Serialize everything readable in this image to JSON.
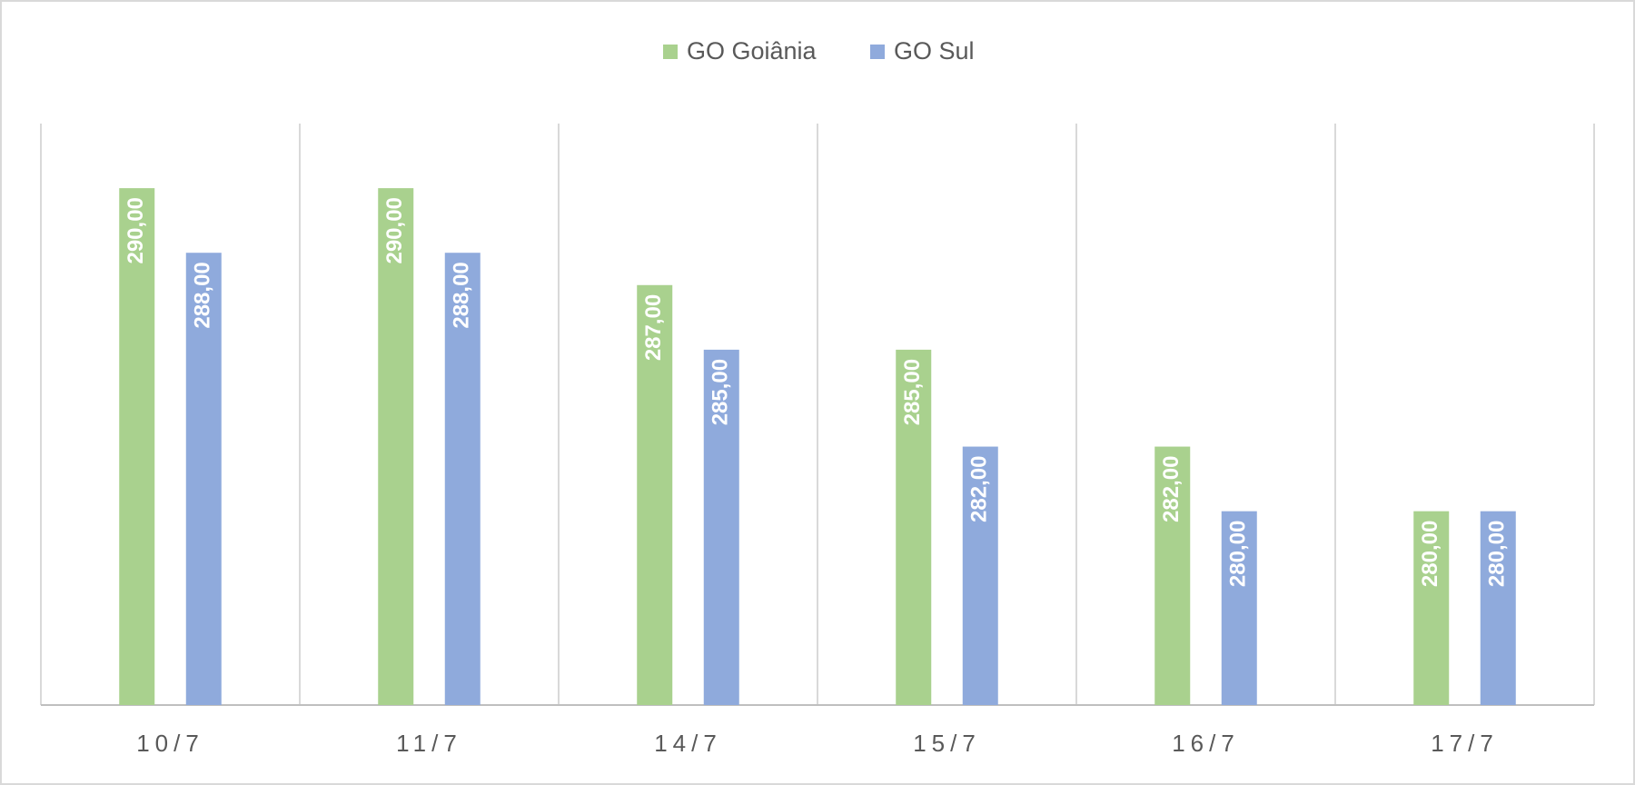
{
  "chart_data": {
    "type": "bar",
    "categories": [
      "10/7",
      "11/7",
      "14/7",
      "15/7",
      "16/7",
      "17/7"
    ],
    "series": [
      {
        "name": "GO Goiânia",
        "color": "#a9d18e",
        "values": [
          290,
          290,
          287,
          285,
          282,
          280
        ],
        "value_labels": [
          "290,00",
          "290,00",
          "287,00",
          "285,00",
          "282,00",
          "280,00"
        ]
      },
      {
        "name": "GO Sul",
        "color": "#8faadc",
        "values": [
          288,
          288,
          285,
          282,
          280,
          280
        ],
        "value_labels": [
          "288,00",
          "288,00",
          "285,00",
          "282,00",
          "280,00",
          "280,00"
        ]
      }
    ],
    "ylim": [
      274,
      292
    ],
    "legend": "top"
  }
}
